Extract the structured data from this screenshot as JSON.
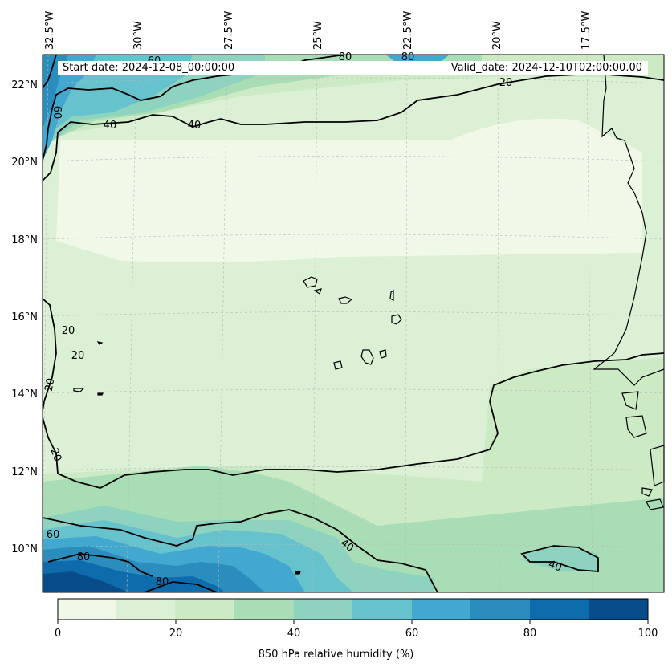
{
  "header": {
    "start_date": "Start date: 2024-12-08_00:00:00",
    "valid_date": "Valid_date: 2024-12-10T02:00:00.00"
  },
  "map": {
    "lon_labels": [
      "32.5°W",
      "30°W",
      "27.5°W",
      "25°W",
      "22.5°W",
      "20°W",
      "17.5°W"
    ],
    "lat_labels": [
      "22°N",
      "20°N",
      "18°N",
      "16°N",
      "14°N",
      "12°N",
      "10°N"
    ],
    "contour_labels": [
      "80",
      "80",
      "60",
      "40",
      "40",
      "20",
      "20",
      "20",
      "20",
      "20",
      "60",
      "80",
      "80",
      "40",
      "40",
      "60"
    ],
    "fill_colors": [
      "#f0f9e8",
      "#dcf0d6",
      "#ccebc5",
      "#a8ddb5",
      "#8ed2c0",
      "#66c2cd",
      "#43a8cf",
      "#2b8cbe",
      "#0f6cac",
      "#084d8a"
    ]
  },
  "colorbar": {
    "ticks": [
      "0",
      "20",
      "40",
      "60",
      "80",
      "100"
    ],
    "title": "850 hPa relative humidity (%)",
    "colors": [
      "#f0f9e8",
      "#dcf0d6",
      "#ccebc5",
      "#a8ddb5",
      "#8ed2c0",
      "#66c2cd",
      "#43a8cf",
      "#2b8cbe",
      "#0f6cac",
      "#084d8a"
    ]
  }
}
